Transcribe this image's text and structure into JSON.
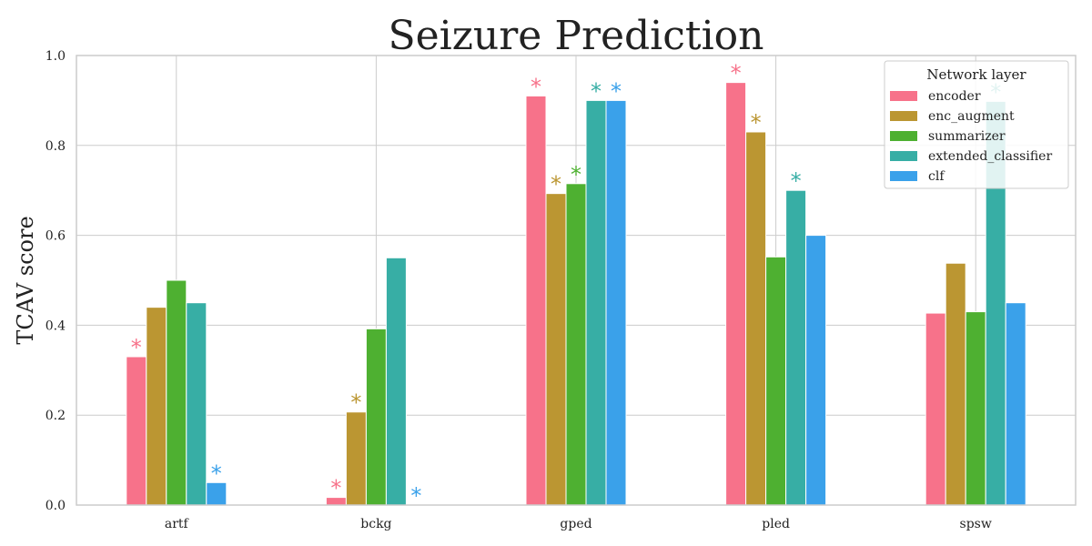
{
  "chart_data": {
    "type": "bar",
    "title": "Seizure Prediction",
    "xlabel": "",
    "ylabel": "TCAV score",
    "ylim": [
      0,
      1.0
    ],
    "yticks": [
      "0.0",
      "0.2",
      "0.4",
      "0.6",
      "0.8",
      "1.0"
    ],
    "grid": true,
    "categories": [
      "artf",
      "bckg",
      "gped",
      "pled",
      "spsw"
    ],
    "legend": {
      "title": "Network layer",
      "placement": "top-right"
    },
    "series": [
      {
        "name": "encoder",
        "color": "#f7728a",
        "values": [
          0.33,
          0.017,
          0.91,
          0.94,
          0.427
        ],
        "significant": [
          true,
          true,
          true,
          true,
          false
        ]
      },
      {
        "name": "enc_augment",
        "color": "#bb9632",
        "values": [
          0.44,
          0.207,
          0.693,
          0.83,
          0.538
        ],
        "significant": [
          false,
          true,
          true,
          true,
          false
        ]
      },
      {
        "name": "summarizer",
        "color": "#4eb031",
        "values": [
          0.5,
          0.392,
          0.715,
          0.552,
          0.43
        ],
        "significant": [
          false,
          false,
          true,
          false,
          false
        ]
      },
      {
        "name": "extended_classifier",
        "color": "#37aea5",
        "values": [
          0.45,
          0.55,
          0.9,
          0.7,
          0.898
        ],
        "significant": [
          false,
          false,
          true,
          true,
          true
        ]
      },
      {
        "name": "clf",
        "color": "#3aa1ea",
        "values": [
          0.05,
          0.0,
          0.9,
          0.6,
          0.45
        ],
        "significant": [
          true,
          true,
          true,
          false,
          false
        ]
      }
    ],
    "significance_marker": "*"
  }
}
